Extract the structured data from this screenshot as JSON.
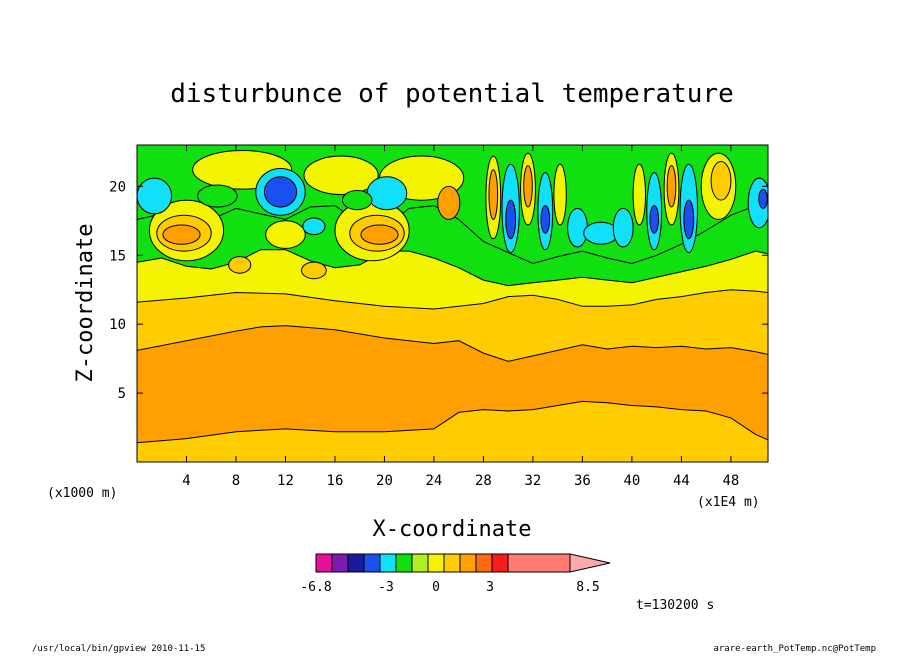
{
  "chart_data": {
    "type": "heatmap",
    "title": "disturbunce of potential temperature",
    "xlabel": "X-coordinate",
    "ylabel": "Z-coordinate",
    "x_unit": "(x1E4 m)",
    "y_unit": "(x1000 m)",
    "xlim": [
      0,
      51
    ],
    "ylim": [
      0,
      23
    ],
    "x_ticks": [
      4,
      8,
      12,
      16,
      20,
      24,
      28,
      32,
      36,
      40,
      44,
      48
    ],
    "y_ticks": [
      5,
      10,
      15,
      20
    ],
    "time_label": "t=130200 s",
    "colorbar": {
      "labels": [
        "-6.8",
        "-3",
        "0",
        "3",
        "8.5"
      ],
      "colors": [
        "#e8109a",
        "#7c1ab4",
        "#1a1aa0",
        "#1a50f0",
        "#10e0f8",
        "#10e010",
        "#b0f020",
        "#f4f400",
        "#ffcc00",
        "#ffa000",
        "#ff6a10",
        "#ff1a1a",
        "#ff7a70",
        "#ffaaaa"
      ],
      "open_max": true
    },
    "bands": [
      {
        "name": "lowest",
        "color": "#ffcc00",
        "upper": [
          [
            0,
            1.4
          ],
          [
            4,
            1.7
          ],
          [
            8,
            2.2
          ],
          [
            12,
            2.4
          ],
          [
            16,
            2.2
          ],
          [
            20,
            2.2
          ],
          [
            24,
            2.4
          ],
          [
            26,
            3.6
          ],
          [
            28,
            3.8
          ],
          [
            30,
            3.7
          ],
          [
            32,
            3.8
          ],
          [
            34,
            4.1
          ],
          [
            36,
            4.4
          ],
          [
            38,
            4.3
          ],
          [
            40,
            4.1
          ],
          [
            42,
            4.0
          ],
          [
            44,
            3.8
          ],
          [
            46,
            3.7
          ],
          [
            48,
            3.2
          ],
          [
            50,
            2.0
          ],
          [
            51,
            1.6
          ]
        ]
      },
      {
        "name": "orange",
        "color": "#ffa000",
        "upper": [
          [
            0,
            8.1
          ],
          [
            4,
            8.8
          ],
          [
            8,
            9.5
          ],
          [
            10,
            9.8
          ],
          [
            12,
            9.9
          ],
          [
            16,
            9.6
          ],
          [
            20,
            9.0
          ],
          [
            24,
            8.6
          ],
          [
            26,
            8.8
          ],
          [
            28,
            7.9
          ],
          [
            30,
            7.3
          ],
          [
            32,
            7.7
          ],
          [
            34,
            8.1
          ],
          [
            36,
            8.5
          ],
          [
            38,
            8.2
          ],
          [
            40,
            8.4
          ],
          [
            42,
            8.3
          ],
          [
            44,
            8.4
          ],
          [
            46,
            8.2
          ],
          [
            48,
            8.3
          ],
          [
            50,
            8.0
          ],
          [
            51,
            7.8
          ]
        ]
      },
      {
        "name": "gold",
        "color": "#ffcc00",
        "upper": [
          [
            0,
            11.6
          ],
          [
            4,
            11.9
          ],
          [
            8,
            12.3
          ],
          [
            12,
            12.2
          ],
          [
            16,
            11.7
          ],
          [
            20,
            11.3
          ],
          [
            24,
            11.1
          ],
          [
            28,
            11.5
          ],
          [
            30,
            12.0
          ],
          [
            32,
            12.1
          ],
          [
            34,
            11.8
          ],
          [
            36,
            11.3
          ],
          [
            38,
            11.3
          ],
          [
            40,
            11.4
          ],
          [
            42,
            11.8
          ],
          [
            44,
            12.0
          ],
          [
            46,
            12.3
          ],
          [
            48,
            12.5
          ],
          [
            50,
            12.4
          ],
          [
            51,
            12.3
          ]
        ]
      },
      {
        "name": "yellow",
        "color": "#f4f400",
        "upper": [
          [
            0,
            14.5
          ],
          [
            2,
            14.8
          ],
          [
            4,
            14.2
          ],
          [
            6,
            14.0
          ],
          [
            8,
            14.5
          ],
          [
            10,
            15.4
          ],
          [
            12,
            15.4
          ],
          [
            14,
            14.6
          ],
          [
            16,
            14.1
          ],
          [
            18,
            14.3
          ],
          [
            20,
            15.3
          ],
          [
            22,
            15.3
          ],
          [
            24,
            14.8
          ],
          [
            26,
            14.1
          ],
          [
            28,
            13.2
          ],
          [
            30,
            12.8
          ],
          [
            32,
            13.0
          ],
          [
            34,
            13.2
          ],
          [
            36,
            13.4
          ],
          [
            38,
            13.2
          ],
          [
            40,
            13.0
          ],
          [
            42,
            13.4
          ],
          [
            44,
            13.8
          ],
          [
            46,
            14.2
          ],
          [
            48,
            14.7
          ],
          [
            50,
            15.3
          ],
          [
            51,
            15.1
          ]
        ]
      },
      {
        "name": "green",
        "color": "#10e010",
        "upper": [
          [
            0,
            17.6
          ],
          [
            2,
            18.0
          ],
          [
            4,
            16.8
          ],
          [
            6,
            17.6
          ],
          [
            8,
            18.4
          ],
          [
            10,
            18.0
          ],
          [
            12,
            17.6
          ],
          [
            14,
            18.5
          ],
          [
            16,
            18.6
          ],
          [
            18,
            17.3
          ],
          [
            20,
            17.0
          ],
          [
            22,
            18.4
          ],
          [
            24,
            18.6
          ],
          [
            26,
            17.6
          ],
          [
            28,
            16.0
          ],
          [
            30,
            15.2
          ],
          [
            32,
            14.4
          ],
          [
            34,
            14.9
          ],
          [
            36,
            15.3
          ],
          [
            38,
            14.8
          ],
          [
            40,
            14.4
          ],
          [
            42,
            15.0
          ],
          [
            44,
            15.8
          ],
          [
            46,
            16.8
          ],
          [
            48,
            17.9
          ],
          [
            50,
            18.6
          ],
          [
            51,
            18.4
          ]
        ]
      },
      {
        "name": "top",
        "color": "#10e010",
        "upper": [
          [
            0,
            23
          ],
          [
            51,
            23
          ]
        ]
      }
    ],
    "features": [
      {
        "color": "#f4f400",
        "cx": 4.0,
        "cy": 16.8,
        "rx": 3.0,
        "ry": 2.2
      },
      {
        "color": "#ffcc00",
        "cx": 3.8,
        "cy": 16.6,
        "rx": 2.2,
        "ry": 1.3
      },
      {
        "color": "#ffa000",
        "cx": 3.6,
        "cy": 16.5,
        "rx": 1.5,
        "ry": 0.7
      },
      {
        "color": "#f4f400",
        "cx": 12.0,
        "cy": 16.5,
        "rx": 1.6,
        "ry": 1.0
      },
      {
        "color": "#f4f400",
        "cx": 19.0,
        "cy": 16.8,
        "rx": 3.0,
        "ry": 2.2
      },
      {
        "color": "#ffcc00",
        "cx": 19.4,
        "cy": 16.6,
        "rx": 2.2,
        "ry": 1.3
      },
      {
        "color": "#ffa000",
        "cx": 19.6,
        "cy": 16.5,
        "rx": 1.5,
        "ry": 0.7
      },
      {
        "color": "#ffcc00",
        "cx": 8.3,
        "cy": 14.3,
        "rx": 0.9,
        "ry": 0.6
      },
      {
        "color": "#ffcc00",
        "cx": 14.3,
        "cy": 13.9,
        "rx": 1.0,
        "ry": 0.6
      },
      {
        "color": "#f4f400",
        "cx": 8.5,
        "cy": 21.2,
        "rx": 4.0,
        "ry": 1.4
      },
      {
        "color": "#f4f400",
        "cx": 16.5,
        "cy": 20.8,
        "rx": 3.0,
        "ry": 1.4
      },
      {
        "color": "#f4f400",
        "cx": 23.0,
        "cy": 20.6,
        "rx": 3.4,
        "ry": 1.6
      },
      {
        "color": "#10e0f8",
        "cx": 1.4,
        "cy": 19.3,
        "rx": 1.4,
        "ry": 1.3
      },
      {
        "color": "#10e0f8",
        "cx": 11.6,
        "cy": 19.6,
        "rx": 2.0,
        "ry": 1.7
      },
      {
        "color": "#1a50f0",
        "cx": 11.6,
        "cy": 19.6,
        "rx": 1.3,
        "ry": 1.1
      },
      {
        "color": "#10e0f8",
        "cx": 14.3,
        "cy": 17.1,
        "rx": 0.9,
        "ry": 0.6
      },
      {
        "color": "#10e0f8",
        "cx": 20.2,
        "cy": 19.5,
        "rx": 1.6,
        "ry": 1.2
      },
      {
        "color": "#10e010",
        "cx": 6.5,
        "cy": 19.3,
        "rx": 1.6,
        "ry": 0.8
      },
      {
        "color": "#10e010",
        "cx": 17.8,
        "cy": 19.0,
        "rx": 1.2,
        "ry": 0.7
      },
      {
        "color": "#ffa000",
        "cx": 25.2,
        "cy": 18.8,
        "rx": 0.9,
        "ry": 1.2
      },
      {
        "color": "#f4f400",
        "cx": 28.8,
        "cy": 19.2,
        "rx": 0.6,
        "ry": 3.0
      },
      {
        "color": "#ffa000",
        "cx": 28.8,
        "cy": 19.4,
        "rx": 0.35,
        "ry": 1.8
      },
      {
        "color": "#10e0f8",
        "cx": 30.2,
        "cy": 18.4,
        "rx": 0.7,
        "ry": 3.2
      },
      {
        "color": "#1a50f0",
        "cx": 30.2,
        "cy": 17.6,
        "rx": 0.4,
        "ry": 1.4
      },
      {
        "color": "#f4f400",
        "cx": 31.6,
        "cy": 19.8,
        "rx": 0.6,
        "ry": 2.6
      },
      {
        "color": "#ffa000",
        "cx": 31.6,
        "cy": 20.0,
        "rx": 0.35,
        "ry": 1.5
      },
      {
        "color": "#10e0f8",
        "cx": 33.0,
        "cy": 18.2,
        "rx": 0.6,
        "ry": 2.8
      },
      {
        "color": "#1a50f0",
        "cx": 33.0,
        "cy": 17.6,
        "rx": 0.35,
        "ry": 1.0
      },
      {
        "color": "#f4f400",
        "cx": 34.2,
        "cy": 19.4,
        "rx": 0.5,
        "ry": 2.2
      },
      {
        "color": "#10e0f8",
        "cx": 35.6,
        "cy": 17.0,
        "rx": 0.8,
        "ry": 1.4
      },
      {
        "color": "#10e0f8",
        "cx": 37.5,
        "cy": 16.6,
        "rx": 1.4,
        "ry": 0.8
      },
      {
        "color": "#10e0f8",
        "cx": 39.3,
        "cy": 17.0,
        "rx": 0.8,
        "ry": 1.4
      },
      {
        "color": "#f4f400",
        "cx": 40.6,
        "cy": 19.4,
        "rx": 0.5,
        "ry": 2.2
      },
      {
        "color": "#10e0f8",
        "cx": 41.8,
        "cy": 18.2,
        "rx": 0.6,
        "ry": 2.8
      },
      {
        "color": "#1a50f0",
        "cx": 41.8,
        "cy": 17.6,
        "rx": 0.35,
        "ry": 1.0
      },
      {
        "color": "#f4f400",
        "cx": 43.2,
        "cy": 19.8,
        "rx": 0.6,
        "ry": 2.6
      },
      {
        "color": "#ffa000",
        "cx": 43.2,
        "cy": 20.0,
        "rx": 0.35,
        "ry": 1.5
      },
      {
        "color": "#10e0f8",
        "cx": 44.6,
        "cy": 18.4,
        "rx": 0.7,
        "ry": 3.2
      },
      {
        "color": "#1a50f0",
        "cx": 44.6,
        "cy": 17.6,
        "rx": 0.4,
        "ry": 1.4
      },
      {
        "color": "#f4f400",
        "cx": 47.0,
        "cy": 20.0,
        "rx": 1.4,
        "ry": 2.4
      },
      {
        "color": "#ffcc00",
        "cx": 47.2,
        "cy": 20.4,
        "rx": 0.8,
        "ry": 1.4
      },
      {
        "color": "#10e0f8",
        "cx": 50.3,
        "cy": 18.8,
        "rx": 0.9,
        "ry": 1.8
      },
      {
        "color": "#1a50f0",
        "cx": 50.6,
        "cy": 19.1,
        "rx": 0.35,
        "ry": 0.7
      }
    ]
  },
  "footer": {
    "left": "/usr/local/bin/gpview  2010-11-15",
    "right": "arare-earth_PotTemp.nc@PotTemp"
  }
}
